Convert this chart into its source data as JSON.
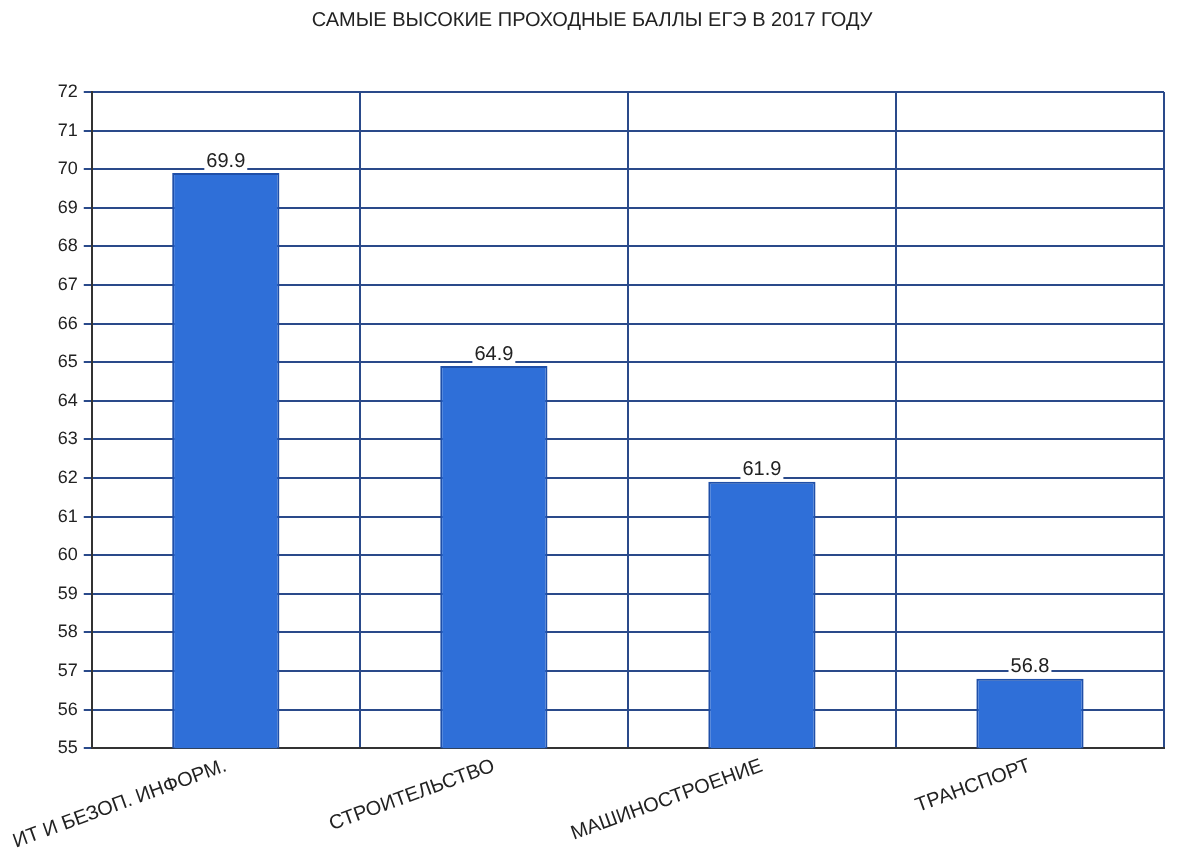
{
  "chart_data": {
    "type": "bar",
    "title": "САМЫЕ ВЫСОКИЕ ПРОХОДНЫЕ БАЛЛЫ ЕГЭ В 2017 ГОДУ",
    "categories": [
      "ИТ И БЕЗОП. ИНФОРМ.",
      "СТРОИТЕЛЬСТВО",
      "МАШИНОСТРОЕНИЕ",
      "ТРАНСПОРТ"
    ],
    "values": [
      69.9,
      64.9,
      61.9,
      56.8
    ],
    "color": "#2f6fd8",
    "ylim": [
      55,
      72
    ],
    "yticks": [
      55,
      56,
      57,
      58,
      59,
      60,
      61,
      62,
      63,
      64,
      65,
      66,
      67,
      68,
      69,
      70,
      71,
      72
    ],
    "grid": true,
    "data_labels": true
  }
}
